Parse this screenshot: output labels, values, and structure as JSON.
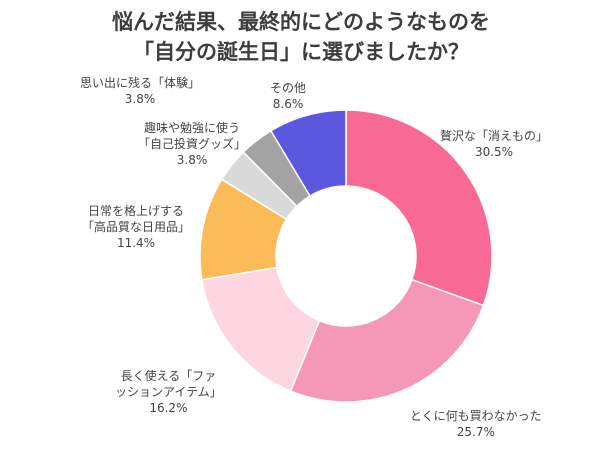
{
  "chart_data": {
    "type": "pie",
    "donut": true,
    "title": [
      "悩んだ結果、最終的にどのようなものを",
      "「自分の誕生日」に選びましたか？"
    ],
    "categories": [
      "贅沢な「消えもの」",
      "とくに何も買わなかった",
      "長く使える「ファッションアイテム」",
      "日常を格上げする「高品質な日用品」",
      "思い出に残る「体験」",
      "趣味や勉強に使う「自己投資グッズ」",
      "その他"
    ],
    "values": [
      30.5,
      25.7,
      16.2,
      11.4,
      3.8,
      3.8,
      8.6
    ],
    "labels": [
      {
        "lines": [
          "贅沢な「消えもの」"
        ],
        "value": "30.5%"
      },
      {
        "lines": [
          "とくに何も買わなかった"
        ],
        "value": "25.7%"
      },
      {
        "lines": [
          "長く使える「ファ",
          "ッションアイテム」"
        ],
        "value": "16.2%"
      },
      {
        "lines": [
          "日常を格上げする",
          "「高品質な日用品」"
        ],
        "value": "11.4%"
      },
      {
        "lines": [
          "思い出に残る「体験」"
        ],
        "value": "3.8%"
      },
      {
        "lines": [
          "趣味や勉強に使う",
          "「自己投資グッズ」"
        ],
        "value": "3.8%"
      },
      {
        "lines": [
          "その他"
        ],
        "value": "8.6%"
      }
    ],
    "colors": [
      "#f86a95",
      "#f597b6",
      "#fdd6e2",
      "#fbbb58",
      "#d9d9d9",
      "#a3a3a3",
      "#5b57df"
    ],
    "start": "top",
    "direction": "clockwise",
    "legend": "none"
  }
}
